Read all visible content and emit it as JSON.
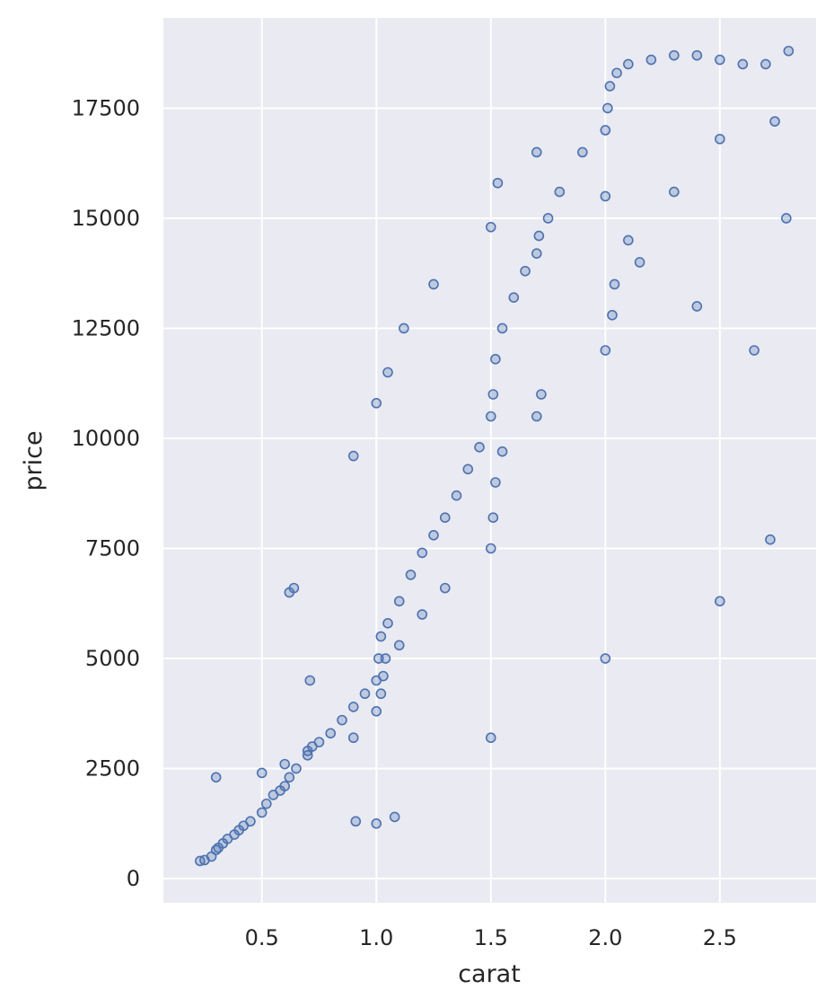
{
  "chart_data": {
    "type": "scatter",
    "title": "",
    "xlabel": "carat",
    "ylabel": "price",
    "xlim": [
      0.07,
      2.92
    ],
    "ylim": [
      -550,
      19550
    ],
    "x_ticks": [
      0.5,
      1.0,
      1.5,
      2.0,
      2.5
    ],
    "x_tick_labels": [
      "0.5",
      "1.0",
      "1.5",
      "2.0",
      "2.5"
    ],
    "y_ticks": [
      0,
      2500,
      5000,
      7500,
      10000,
      12500,
      15000,
      17500
    ],
    "y_tick_labels": [
      "0",
      "2500",
      "5000",
      "7500",
      "10000",
      "12500",
      "15000",
      "17500"
    ],
    "grid": true,
    "colors": {
      "background": "#eaeaf2",
      "grid": "#ffffff",
      "marker": "#4c72b0",
      "text": "#262626"
    },
    "marker": "open-circle",
    "series": [
      {
        "x": [
          0.23,
          0.25,
          0.28,
          0.3,
          0.31,
          0.33,
          0.35,
          0.38,
          0.4,
          0.42,
          0.45,
          0.5,
          0.52,
          0.55,
          0.58,
          0.6,
          0.62,
          0.65,
          0.7,
          0.72,
          0.75,
          0.8,
          0.85,
          0.9,
          0.95,
          1.0,
          1.01,
          1.02,
          1.05,
          1.1,
          1.15,
          1.2,
          1.25,
          1.3,
          1.35,
          1.4,
          1.45,
          1.5,
          1.51,
          1.52,
          1.55,
          1.6,
          1.65,
          1.7,
          1.71,
          1.75,
          1.8,
          1.9,
          2.0,
          2.01,
          2.02,
          2.05,
          2.1,
          2.2,
          2.3,
          2.4,
          2.5,
          2.6,
          2.7,
          2.8,
          0.3,
          0.5,
          0.6,
          0.7,
          0.9,
          1.0,
          1.02,
          1.03,
          1.04,
          1.1,
          1.2,
          1.3,
          1.5,
          1.51,
          1.52,
          1.55,
          1.7,
          1.72,
          2.0,
          2.03,
          2.04,
          2.1,
          2.3,
          2.5,
          2.74,
          0.62,
          0.64,
          0.71,
          0.9,
          1.0,
          1.05,
          1.12,
          1.25,
          1.5,
          1.53,
          1.7,
          2.0,
          2.15,
          2.4,
          2.65,
          2.79,
          0.91,
          1.0,
          1.08,
          1.5,
          2.0,
          2.5,
          2.72
        ],
        "y": [
          400,
          420,
          500,
          650,
          700,
          800,
          900,
          1000,
          1100,
          1200,
          1300,
          1500,
          1700,
          1900,
          2000,
          2100,
          2300,
          2500,
          2800,
          3000,
          3100,
          3300,
          3600,
          3900,
          4200,
          4500,
          5000,
          5500,
          5800,
          6300,
          6900,
          7400,
          7800,
          8200,
          8700,
          9300,
          9800,
          10500,
          11000,
          11800,
          12500,
          13200,
          13800,
          14200,
          14600,
          15000,
          15600,
          16500,
          17000,
          17500,
          18000,
          18300,
          18500,
          18600,
          18700,
          18700,
          18600,
          18500,
          18500,
          18800,
          2300,
          2400,
          2600,
          2900,
          3200,
          3800,
          4200,
          4600,
          5000,
          5300,
          6000,
          6600,
          7500,
          8200,
          9000,
          9700,
          10500,
          11000,
          12000,
          12800,
          13500,
          14500,
          15600,
          16800,
          17200,
          6500,
          6600,
          4500,
          9600,
          10800,
          11500,
          12500,
          13500,
          14800,
          15800,
          16500,
          15500,
          14000,
          13000,
          12000,
          15000,
          1300,
          1250,
          1400,
          3200,
          5000,
          6300,
          7700
        ]
      }
    ]
  }
}
